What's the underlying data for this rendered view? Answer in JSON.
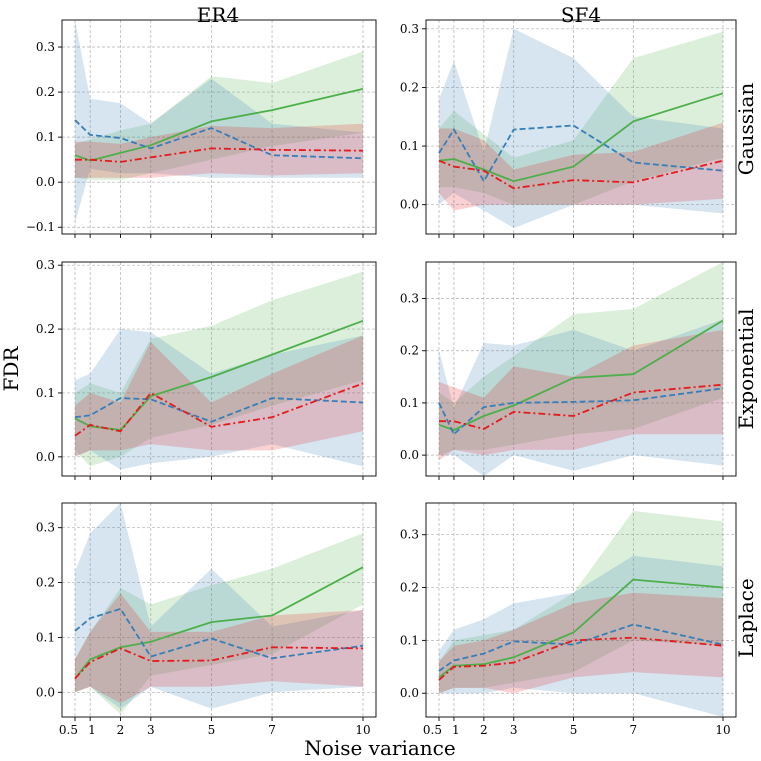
{
  "figure": {
    "xlabel": "Noise variance",
    "ylabel": "FDR",
    "column_titles": [
      "ER4",
      "SF4"
    ],
    "row_titles": [
      "Gaussian",
      "Exponential",
      "Laplace"
    ],
    "colors": {
      "green": "#4daf4a",
      "blue": "#377eb8",
      "red": "#e41a1c",
      "grid": "#b0b0b0"
    }
  },
  "chart_data": [
    {
      "type": "line",
      "panel": "ER4 / Gaussian",
      "x": [
        0.5,
        1,
        2,
        3,
        5,
        7,
        10
      ],
      "x_tick_labels": [],
      "ylim": [
        -0.115,
        0.36
      ],
      "yticks": [
        -0.1,
        0.0,
        0.1,
        0.2,
        0.3
      ],
      "y_tick_labels": [
        "−0.1",
        "0.0",
        "0.1",
        "0.2",
        "0.3"
      ],
      "series": [
        {
          "name": "green",
          "color": "#4daf4a",
          "style": "solid",
          "values": [
            0.06,
            0.048,
            0.065,
            0.082,
            0.135,
            0.16,
            0.207
          ],
          "lower": [
            0.01,
            0.005,
            0.005,
            0.02,
            0.05,
            0.08,
            0.11
          ],
          "upper": [
            0.085,
            0.095,
            0.115,
            0.13,
            0.235,
            0.22,
            0.29
          ]
        },
        {
          "name": "blue",
          "color": "#377eb8",
          "style": "dashed",
          "values": [
            0.138,
            0.105,
            0.098,
            0.075,
            0.12,
            0.06,
            0.053
          ],
          "lower": [
            -0.09,
            0.03,
            0.02,
            0.02,
            0.01,
            0.01,
            0.01
          ],
          "upper": [
            0.36,
            0.185,
            0.175,
            0.13,
            0.23,
            0.13,
            0.11
          ]
        },
        {
          "name": "red",
          "color": "#e41a1c",
          "style": "dashdot",
          "values": [
            0.05,
            0.05,
            0.045,
            0.055,
            0.075,
            0.072,
            0.07
          ],
          "lower": [
            0.01,
            0.01,
            0.01,
            0.01,
            0.02,
            0.015,
            0.02
          ],
          "upper": [
            0.09,
            0.09,
            0.085,
            0.1,
            0.125,
            0.12,
            0.13
          ]
        }
      ]
    },
    {
      "type": "line",
      "panel": "SF4 / Gaussian",
      "x": [
        0.5,
        1,
        2,
        3,
        5,
        7,
        10
      ],
      "x_tick_labels": [],
      "ylim": [
        -0.05,
        0.315
      ],
      "yticks": [
        0.0,
        0.1,
        0.2,
        0.3
      ],
      "y_tick_labels": [
        "0.0",
        "0.1",
        "0.2",
        "0.3"
      ],
      "series": [
        {
          "name": "green",
          "color": "#4daf4a",
          "style": "solid",
          "values": [
            0.075,
            0.078,
            0.06,
            0.04,
            0.065,
            0.142,
            0.19
          ],
          "lower": [
            0.03,
            0.03,
            0.02,
            0.0,
            0.0,
            0.04,
            0.08
          ],
          "upper": [
            0.13,
            0.16,
            0.12,
            0.08,
            0.11,
            0.25,
            0.295
          ]
        },
        {
          "name": "blue",
          "color": "#377eb8",
          "style": "dashed",
          "values": [
            0.088,
            0.128,
            0.04,
            0.128,
            0.135,
            0.072,
            0.058
          ],
          "lower": [
            0.0,
            0.02,
            -0.01,
            -0.04,
            0.0,
            0.0,
            -0.015
          ],
          "upper": [
            0.18,
            0.245,
            0.09,
            0.3,
            0.25,
            0.15,
            0.13
          ]
        },
        {
          "name": "red",
          "color": "#e41a1c",
          "style": "dashdot",
          "values": [
            0.075,
            0.065,
            0.058,
            0.028,
            0.042,
            0.038,
            0.075
          ],
          "lower": [
            0.02,
            -0.01,
            0.0,
            0.0,
            0.0,
            0.0,
            0.01
          ],
          "upper": [
            0.13,
            0.13,
            0.11,
            0.06,
            0.085,
            0.09,
            0.14
          ]
        }
      ]
    },
    {
      "type": "line",
      "panel": "ER4 / Exponential",
      "x": [
        0.5,
        1,
        2,
        3,
        5,
        7,
        10
      ],
      "x_tick_labels": [],
      "ylim": [
        -0.03,
        0.305
      ],
      "yticks": [
        0.0,
        0.1,
        0.2,
        0.3
      ],
      "y_tick_labels": [
        "0.0",
        "0.1",
        "0.2",
        "0.3"
      ],
      "series": [
        {
          "name": "green",
          "color": "#4daf4a",
          "style": "solid",
          "values": [
            0.06,
            0.048,
            0.042,
            0.095,
            0.125,
            0.16,
            0.213
          ],
          "lower": [
            0.01,
            -0.015,
            0.0,
            0.03,
            0.05,
            0.08,
            0.12
          ],
          "upper": [
            0.1,
            0.115,
            0.1,
            0.185,
            0.205,
            0.245,
            0.29
          ]
        },
        {
          "name": "blue",
          "color": "#377eb8",
          "style": "dashed",
          "values": [
            0.062,
            0.065,
            0.092,
            0.09,
            0.055,
            0.092,
            0.085
          ],
          "lower": [
            0.0,
            0.01,
            -0.02,
            -0.01,
            0.0,
            0.02,
            -0.015
          ],
          "upper": [
            0.12,
            0.13,
            0.2,
            0.195,
            0.13,
            0.16,
            0.19
          ]
        },
        {
          "name": "red",
          "color": "#e41a1c",
          "style": "dashdot",
          "values": [
            0.033,
            0.05,
            0.04,
            0.1,
            0.047,
            0.062,
            0.115
          ],
          "lower": [
            0.0,
            0.01,
            0.01,
            0.02,
            0.01,
            0.01,
            0.04
          ],
          "upper": [
            0.08,
            0.1,
            0.085,
            0.18,
            0.085,
            0.13,
            0.19
          ]
        }
      ]
    },
    {
      "type": "line",
      "panel": "SF4 / Exponential",
      "x": [
        0.5,
        1,
        2,
        3,
        5,
        7,
        10
      ],
      "x_tick_labels": [],
      "ylim": [
        -0.04,
        0.37
      ],
      "yticks": [
        0.0,
        0.1,
        0.2,
        0.3
      ],
      "y_tick_labels": [
        "0.0",
        "0.1",
        "0.2",
        "0.3"
      ],
      "series": [
        {
          "name": "green",
          "color": "#4daf4a",
          "style": "solid",
          "values": [
            0.058,
            0.048,
            0.075,
            0.095,
            0.148,
            0.155,
            0.258
          ],
          "lower": [
            0.0,
            0.01,
            0.01,
            0.02,
            0.04,
            0.05,
            0.11
          ],
          "upper": [
            0.12,
            0.1,
            0.15,
            0.19,
            0.27,
            0.28,
            0.37
          ]
        },
        {
          "name": "blue",
          "color": "#377eb8",
          "style": "dashed",
          "values": [
            0.1,
            0.04,
            0.092,
            0.1,
            0.102,
            0.105,
            0.128
          ],
          "lower": [
            0.0,
            0.0,
            -0.04,
            0.0,
            -0.03,
            0.0,
            -0.02
          ],
          "upper": [
            0.2,
            0.09,
            0.215,
            0.21,
            0.24,
            0.2,
            0.26
          ]
        },
        {
          "name": "red",
          "color": "#e41a1c",
          "style": "dashdot",
          "values": [
            0.065,
            0.065,
            0.05,
            0.083,
            0.075,
            0.12,
            0.135
          ],
          "lower": [
            -0.01,
            0.01,
            0.0,
            0.01,
            0.01,
            0.04,
            0.04
          ],
          "upper": [
            0.14,
            0.13,
            0.11,
            0.17,
            0.15,
            0.21,
            0.24
          ]
        }
      ]
    },
    {
      "type": "line",
      "panel": "ER4 / Laplace",
      "x": [
        0.5,
        1,
        2,
        3,
        5,
        7,
        10
      ],
      "x_tick_labels": [
        "0.5",
        "1",
        "2",
        "3",
        "5",
        "7",
        "10"
      ],
      "ylim": [
        -0.045,
        0.345
      ],
      "yticks": [
        0.0,
        0.1,
        0.2,
        0.3
      ],
      "y_tick_labels": [
        "0.0",
        "0.1",
        "0.2",
        "0.3"
      ],
      "series": [
        {
          "name": "green",
          "color": "#4daf4a",
          "style": "solid",
          "values": [
            0.025,
            0.06,
            0.082,
            0.092,
            0.128,
            0.14,
            0.228
          ],
          "lower": [
            0.0,
            0.01,
            -0.04,
            0.03,
            0.05,
            0.07,
            0.16
          ],
          "upper": [
            0.06,
            0.11,
            0.19,
            0.16,
            0.195,
            0.225,
            0.29
          ]
        },
        {
          "name": "blue",
          "color": "#377eb8",
          "style": "dashed",
          "values": [
            0.112,
            0.135,
            0.152,
            0.065,
            0.098,
            0.062,
            0.085
          ],
          "lower": [
            0.0,
            0.01,
            -0.03,
            0.01,
            -0.03,
            0.0,
            0.01
          ],
          "upper": [
            0.22,
            0.29,
            0.345,
            0.12,
            0.225,
            0.12,
            0.15
          ]
        },
        {
          "name": "red",
          "color": "#e41a1c",
          "style": "dashdot",
          "values": [
            0.025,
            0.055,
            0.08,
            0.057,
            0.058,
            0.082,
            0.08
          ],
          "lower": [
            0.0,
            0.01,
            -0.02,
            0.01,
            0.01,
            0.02,
            0.01
          ],
          "upper": [
            0.06,
            0.11,
            0.18,
            0.11,
            0.11,
            0.14,
            0.15
          ]
        }
      ]
    },
    {
      "type": "line",
      "panel": "SF4 / Laplace",
      "x": [
        0.5,
        1,
        2,
        3,
        5,
        7,
        10
      ],
      "x_tick_labels": [
        "0.5",
        "1",
        "2",
        "3",
        "5",
        "7",
        "10"
      ],
      "ylim": [
        -0.045,
        0.36
      ],
      "yticks": [
        0.0,
        0.1,
        0.2,
        0.3
      ],
      "y_tick_labels": [
        "0.0",
        "0.1",
        "0.2",
        "0.3"
      ],
      "series": [
        {
          "name": "green",
          "color": "#4daf4a",
          "style": "solid",
          "values": [
            0.03,
            0.052,
            0.055,
            0.068,
            0.115,
            0.215,
            0.2
          ],
          "lower": [
            0.0,
            0.01,
            0.01,
            0.02,
            0.04,
            0.1,
            0.09
          ],
          "upper": [
            0.06,
            0.1,
            0.11,
            0.12,
            0.19,
            0.345,
            0.325
          ]
        },
        {
          "name": "blue",
          "color": "#377eb8",
          "style": "dashed",
          "values": [
            0.042,
            0.062,
            0.075,
            0.098,
            0.092,
            0.13,
            0.092
          ],
          "lower": [
            0.0,
            0.0,
            0.0,
            0.01,
            0.0,
            0.0,
            -0.045
          ],
          "upper": [
            0.08,
            0.12,
            0.14,
            0.17,
            0.19,
            0.26,
            0.24
          ]
        },
        {
          "name": "red",
          "color": "#e41a1c",
          "style": "dashdot",
          "values": [
            0.025,
            0.05,
            0.052,
            0.058,
            0.1,
            0.105,
            0.09
          ],
          "lower": [
            0.0,
            0.01,
            0.01,
            0.0,
            0.03,
            0.04,
            0.03
          ],
          "upper": [
            0.06,
            0.09,
            0.1,
            0.12,
            0.17,
            0.19,
            0.18
          ]
        }
      ]
    }
  ]
}
